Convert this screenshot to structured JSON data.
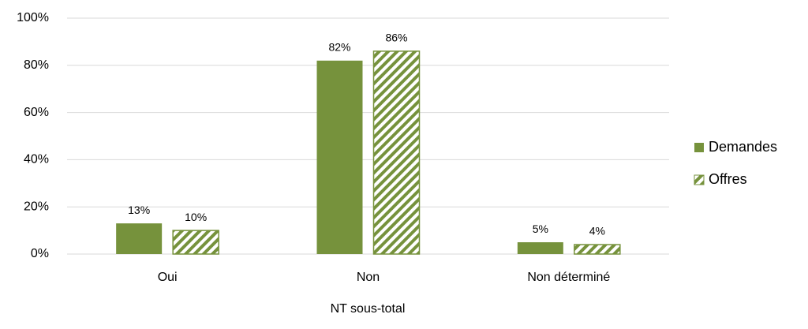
{
  "chart_data": {
    "type": "bar",
    "xlabel": "NT sous-total",
    "categories": [
      "Oui",
      "Non",
      "Non déterminé"
    ],
    "series": [
      {
        "name": "Demandes",
        "color": "#76923c",
        "fill": "solid",
        "values": [
          13,
          82,
          5
        ],
        "value_labels": [
          "13%",
          "82%",
          "5%"
        ]
      },
      {
        "name": "Offres",
        "color": "#76923c",
        "fill": "hatch",
        "values": [
          10,
          86,
          4
        ],
        "value_labels": [
          "10%",
          "86%",
          "4%"
        ]
      }
    ],
    "ylim": [
      0,
      100
    ],
    "yticks": [
      {
        "value": 0,
        "label": "0%"
      },
      {
        "value": 20,
        "label": "20%"
      },
      {
        "value": 40,
        "label": "40%"
      },
      {
        "value": 60,
        "label": "60%"
      },
      {
        "value": 80,
        "label": "80%"
      },
      {
        "value": 100,
        "label": "100%"
      }
    ],
    "grid": true,
    "legend": "right"
  }
}
